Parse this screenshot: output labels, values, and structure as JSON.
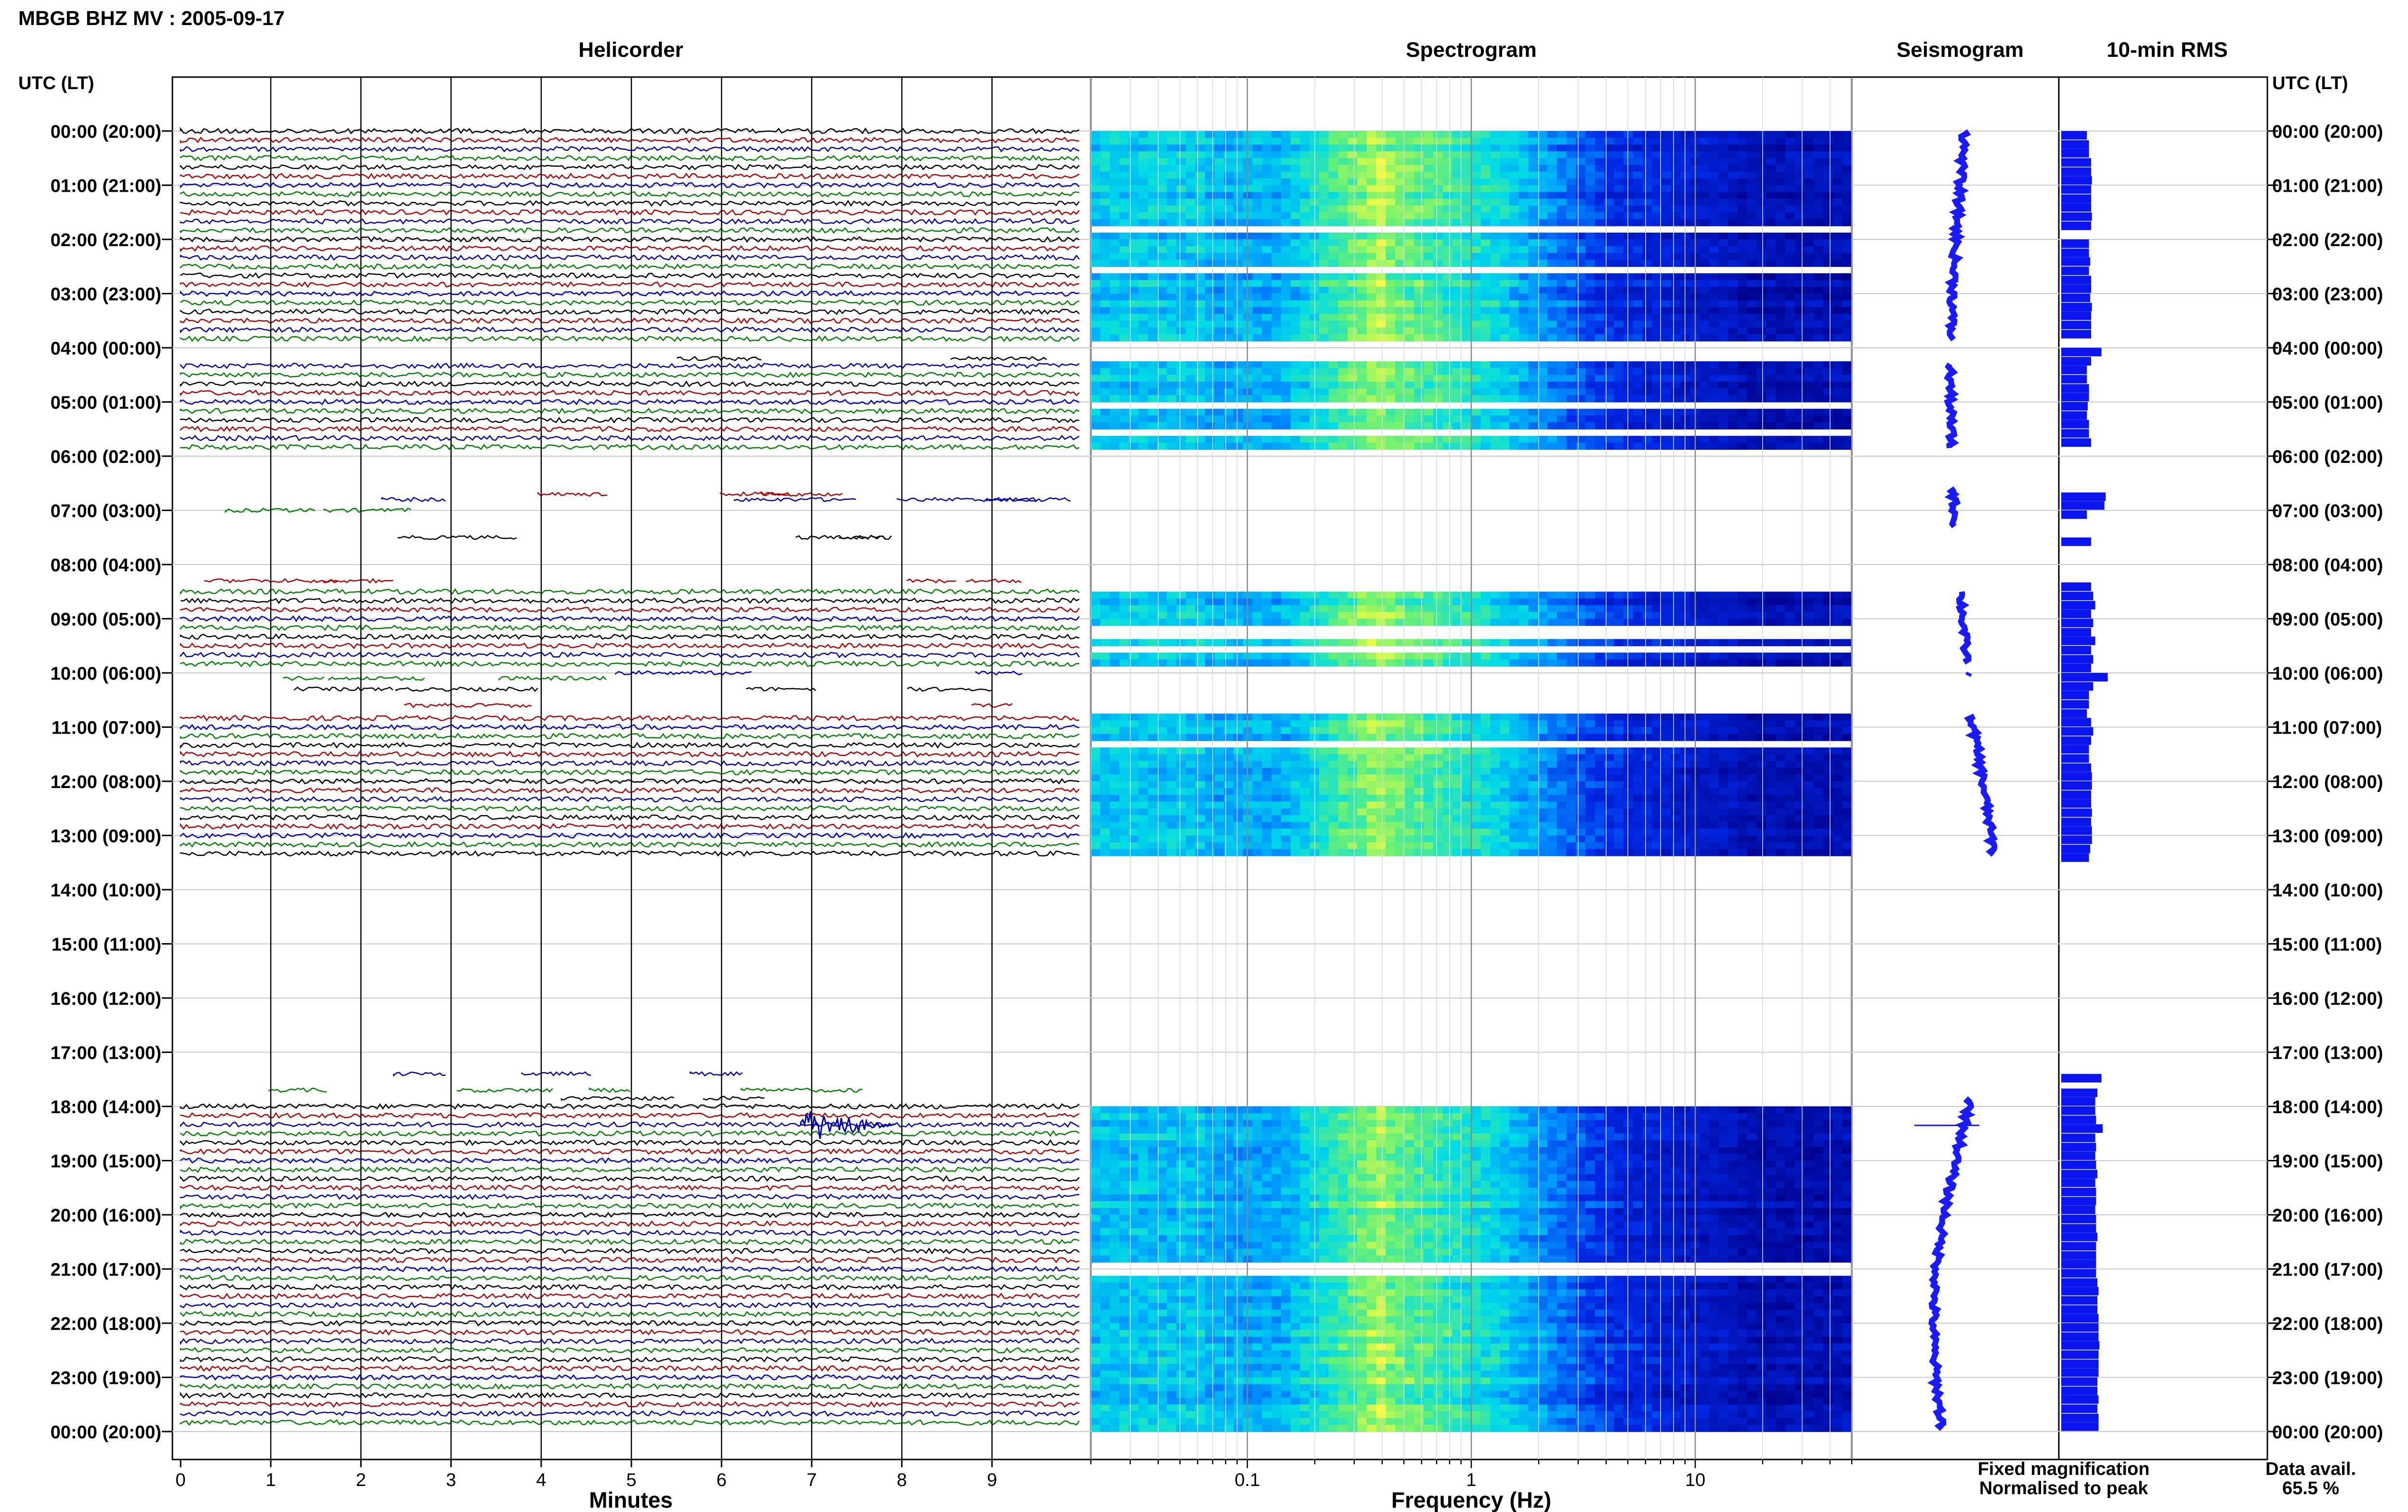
{
  "header": {
    "station_title": "MBGB BHZ MV : 2005-09-17"
  },
  "panels": {
    "helicorder": "Helicorder",
    "spectrogram": "Spectrogram",
    "seismogram": "Seismogram",
    "rms": "10-min RMS"
  },
  "axis_labels": {
    "utc_left": "UTC (LT)",
    "utc_right": "UTC (LT)",
    "minutes": "Minutes",
    "frequency": "Frequency (Hz)"
  },
  "legend": {
    "fixed": "Fixed magnification",
    "normalised": "Normalised to peak",
    "data_avail_label": "Data avail.",
    "data_avail_value": "65.5 %"
  },
  "colors": {
    "fixed": "#1a1aff",
    "normalised": "#ff1a1a",
    "trace_black": "#000000",
    "trace_red": "#b00000",
    "trace_blue": "#0000b0",
    "trace_green": "#008000",
    "rms_bar": "#0a14f0",
    "spec_low": "#00008b",
    "spec_high": "#ffff40"
  },
  "chart_data": {
    "type": "heatmap",
    "time_labels": [
      "00:00 (20:00)",
      "01:00 (21:00)",
      "02:00 (22:00)",
      "03:00 (23:00)",
      "04:00 (00:00)",
      "05:00 (01:00)",
      "06:00 (02:00)",
      "07:00 (03:00)",
      "08:00 (04:00)",
      "09:00 (05:00)",
      "10:00 (06:00)",
      "11:00 (07:00)",
      "12:00 (08:00)",
      "13:00 (09:00)",
      "14:00 (10:00)",
      "15:00 (11:00)",
      "16:00 (12:00)",
      "17:00 (13:00)",
      "18:00 (14:00)",
      "19:00 (15:00)",
      "20:00 (16:00)",
      "21:00 (17:00)",
      "22:00 (18:00)",
      "23:00 (19:00)",
      "00:00 (20:00)"
    ],
    "minute_ticks": [
      "0",
      "1",
      "2",
      "3",
      "4",
      "5",
      "6",
      "7",
      "8",
      "9"
    ],
    "frequency_ticks": [
      "0.1",
      "1",
      "10"
    ],
    "frequency_range_hz": [
      0.02,
      50
    ],
    "data_blocks_hours": [
      [
        0,
        3.85
      ],
      [
        4.3,
        5.85
      ],
      [
        8.5,
        9.85
      ],
      [
        10.8,
        13.4
      ],
      [
        18.0,
        24.0
      ]
    ],
    "spectrogram_gaps_hours": [
      1.85,
      2.55,
      3.75,
      5.05,
      5.6,
      9.15,
      9.3,
      9.6,
      11.3,
      20.95,
      21.05
    ],
    "isolated_trace_hours": [
      4.2,
      6.7,
      6.8,
      7.0,
      7.5,
      8.3,
      10.0,
      10.1,
      10.3,
      10.6,
      17.4,
      17.7,
      17.85
    ],
    "event_hour": 18.35,
    "event_minute": 7.2,
    "rms_values": [
      [
        0.0,
        0.5
      ],
      [
        0.17,
        0.55
      ],
      [
        0.33,
        0.55
      ],
      [
        0.5,
        0.6
      ],
      [
        0.67,
        0.6
      ],
      [
        0.83,
        0.62
      ],
      [
        1.0,
        0.6
      ],
      [
        1.17,
        0.6
      ],
      [
        1.33,
        0.6
      ],
      [
        1.5,
        0.62
      ],
      [
        1.67,
        0.6
      ],
      [
        2.0,
        0.55
      ],
      [
        2.17,
        0.55
      ],
      [
        2.33,
        0.58
      ],
      [
        2.5,
        0.55
      ],
      [
        2.67,
        0.6
      ],
      [
        2.83,
        0.6
      ],
      [
        3.0,
        0.58
      ],
      [
        3.17,
        0.62
      ],
      [
        3.33,
        0.6
      ],
      [
        3.5,
        0.6
      ],
      [
        3.67,
        0.6
      ],
      [
        4.0,
        0.85
      ],
      [
        4.17,
        0.6
      ],
      [
        4.33,
        0.5
      ],
      [
        4.5,
        0.5
      ],
      [
        4.67,
        0.55
      ],
      [
        4.83,
        0.55
      ],
      [
        5.0,
        0.52
      ],
      [
        5.17,
        0.5
      ],
      [
        5.33,
        0.55
      ],
      [
        5.5,
        0.55
      ],
      [
        5.67,
        0.6
      ],
      [
        6.67,
        0.95
      ],
      [
        6.83,
        0.92
      ],
      [
        7.0,
        0.5
      ],
      [
        7.5,
        0.6
      ],
      [
        8.33,
        0.6
      ],
      [
        8.5,
        0.65
      ],
      [
        8.67,
        0.7
      ],
      [
        8.83,
        0.6
      ],
      [
        9.0,
        0.65
      ],
      [
        9.17,
        0.6
      ],
      [
        9.33,
        0.7
      ],
      [
        9.5,
        0.6
      ],
      [
        9.67,
        0.65
      ],
      [
        9.83,
        0.6
      ],
      [
        10.0,
        1.0
      ],
      [
        10.17,
        0.65
      ],
      [
        10.33,
        0.55
      ],
      [
        10.5,
        0.55
      ],
      [
        10.67,
        0.5
      ],
      [
        10.83,
        0.6
      ],
      [
        11.0,
        0.65
      ],
      [
        11.17,
        0.6
      ],
      [
        11.33,
        0.55
      ],
      [
        11.5,
        0.55
      ],
      [
        11.67,
        0.6
      ],
      [
        11.83,
        0.62
      ],
      [
        12.0,
        0.62
      ],
      [
        12.17,
        0.6
      ],
      [
        12.33,
        0.6
      ],
      [
        12.5,
        0.62
      ],
      [
        12.67,
        0.6
      ],
      [
        12.83,
        0.62
      ],
      [
        13.0,
        0.62
      ],
      [
        13.17,
        0.58
      ],
      [
        13.33,
        0.55
      ],
      [
        17.4,
        0.85
      ],
      [
        17.67,
        0.75
      ],
      [
        17.83,
        0.7
      ],
      [
        18.0,
        0.7
      ],
      [
        18.17,
        0.72
      ],
      [
        18.33,
        0.88
      ],
      [
        18.5,
        0.7
      ],
      [
        18.67,
        0.72
      ],
      [
        18.83,
        0.7
      ],
      [
        19.0,
        0.72
      ],
      [
        19.17,
        0.75
      ],
      [
        19.33,
        0.7
      ],
      [
        19.5,
        0.72
      ],
      [
        19.67,
        0.72
      ],
      [
        19.83,
        0.7
      ],
      [
        20.0,
        0.72
      ],
      [
        20.17,
        0.72
      ],
      [
        20.33,
        0.75
      ],
      [
        20.5,
        0.72
      ],
      [
        20.67,
        0.72
      ],
      [
        20.83,
        0.72
      ],
      [
        21.0,
        0.72
      ],
      [
        21.17,
        0.75
      ],
      [
        21.33,
        0.78
      ],
      [
        21.5,
        0.75
      ],
      [
        21.67,
        0.75
      ],
      [
        21.83,
        0.78
      ],
      [
        22.0,
        0.78
      ],
      [
        22.17,
        0.78
      ],
      [
        22.33,
        0.8
      ],
      [
        22.5,
        0.78
      ],
      [
        22.67,
        0.78
      ],
      [
        22.83,
        0.78
      ],
      [
        23.0,
        0.75
      ],
      [
        23.17,
        0.75
      ],
      [
        23.33,
        0.78
      ],
      [
        23.5,
        0.75
      ],
      [
        23.67,
        0.78
      ],
      [
        23.83,
        0.78
      ]
    ]
  }
}
